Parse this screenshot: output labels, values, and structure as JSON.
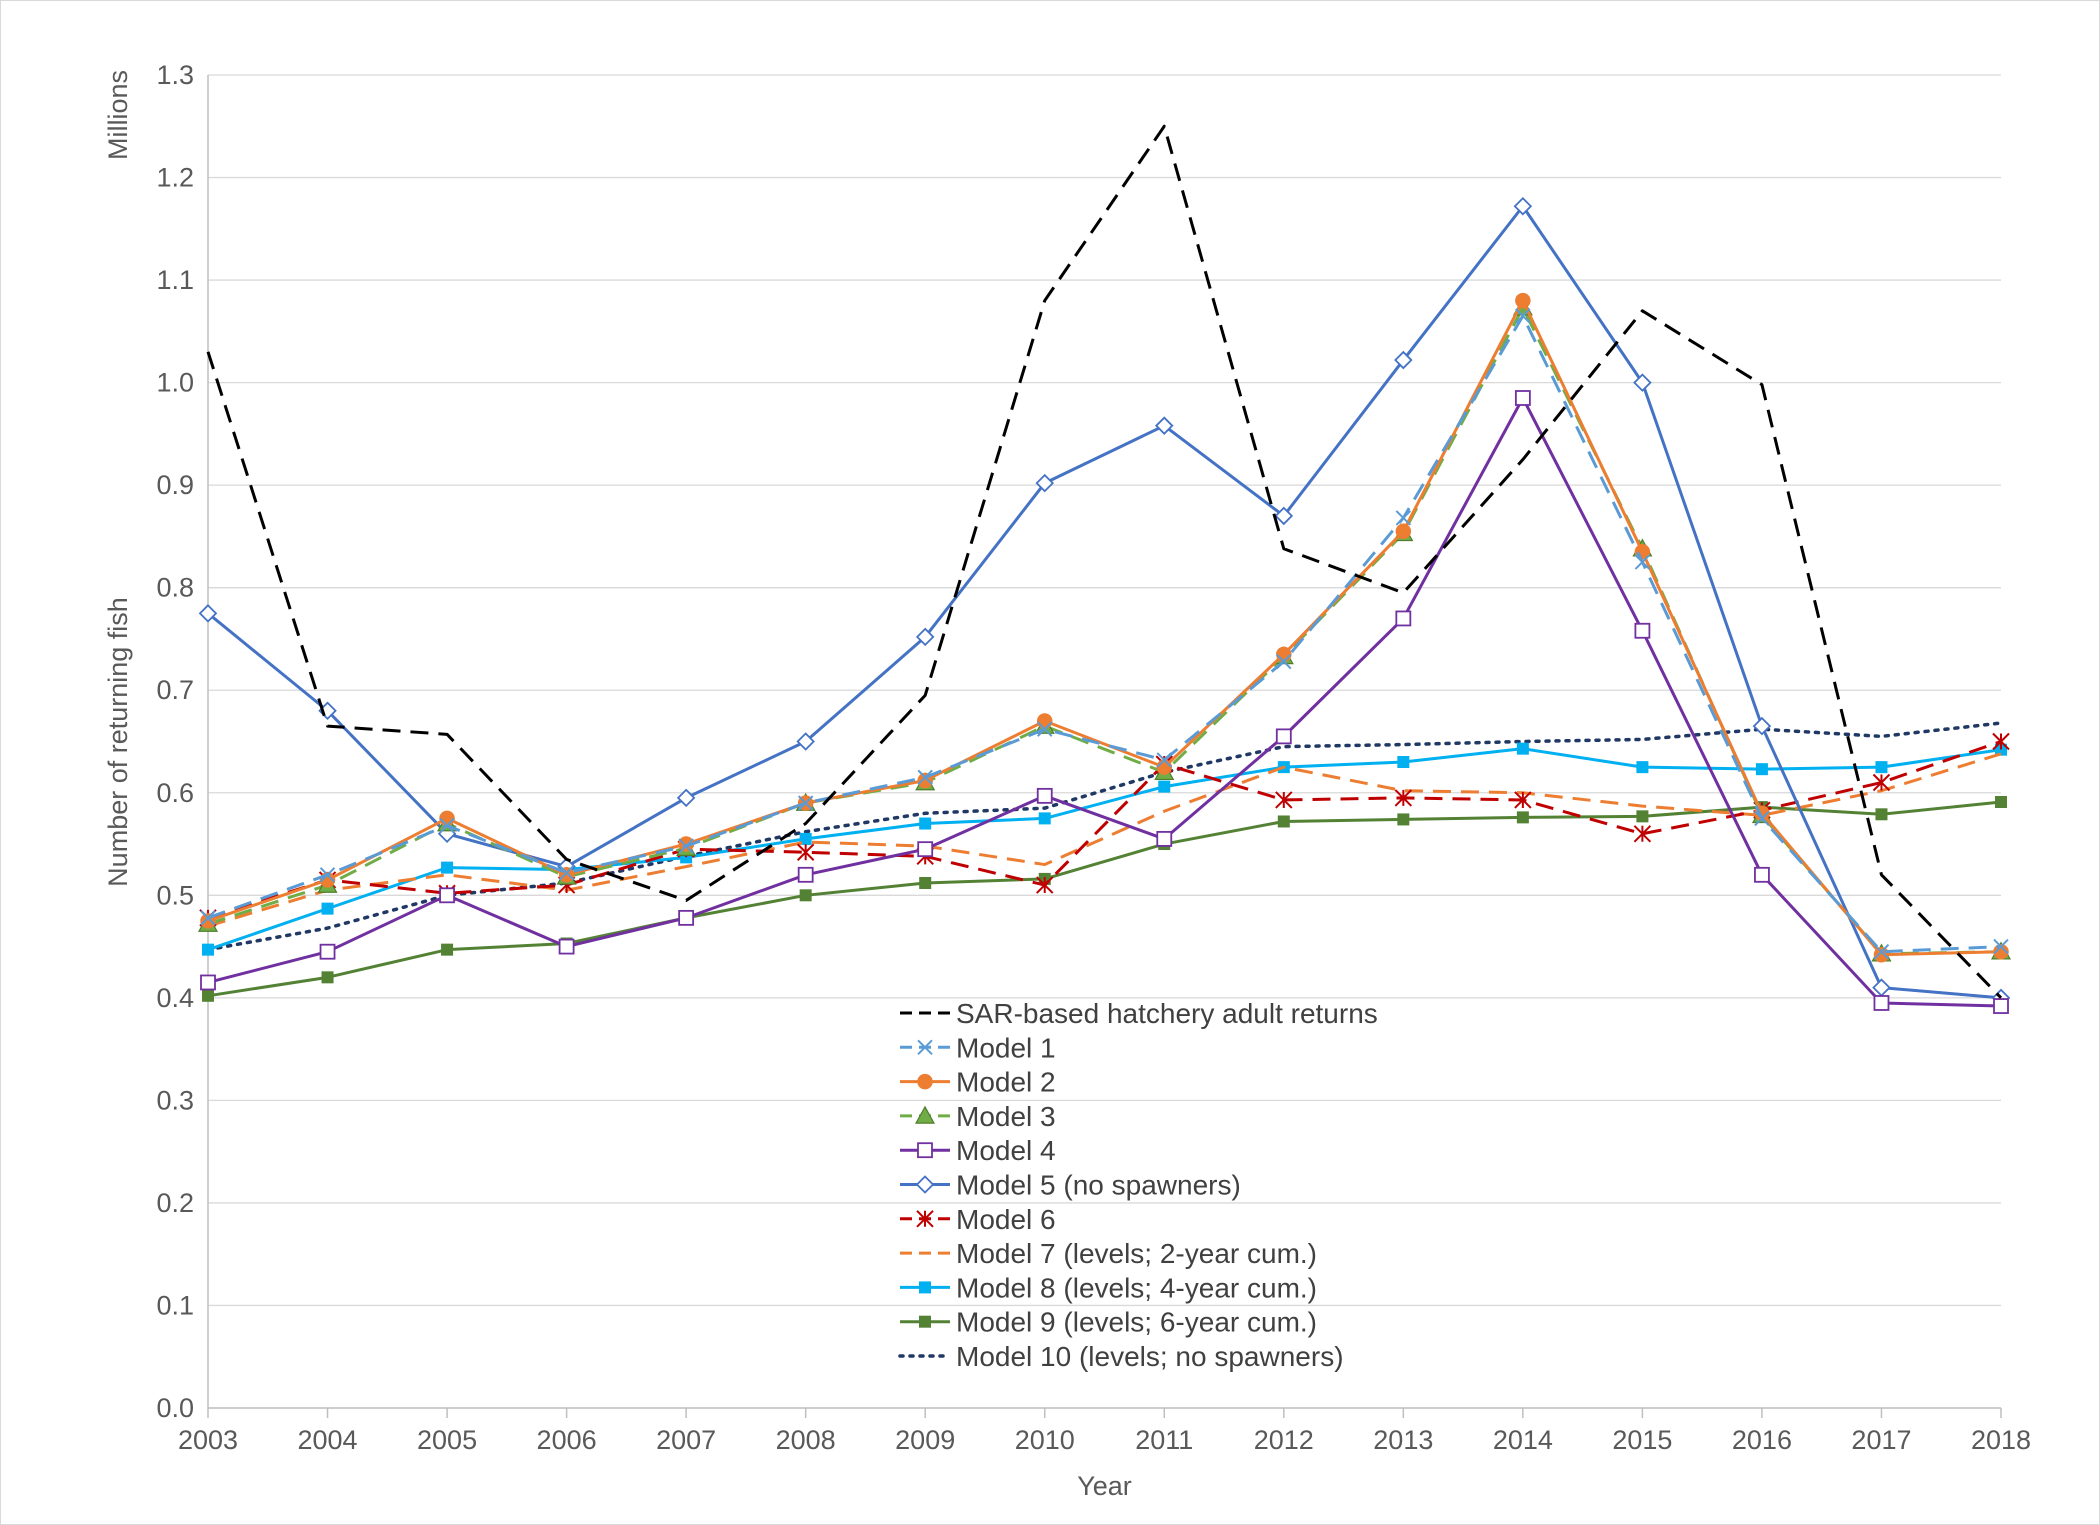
{
  "chart_data": {
    "type": "line",
    "title": "",
    "xlabel": "Year",
    "ylabel": "Number of returning fish",
    "yunit": "Millions",
    "ylim": [
      0,
      1.3
    ],
    "yticks": [
      "0.0",
      "0.1",
      "0.2",
      "0.3",
      "0.4",
      "0.5",
      "0.6",
      "0.7",
      "0.8",
      "0.9",
      "1.0",
      "1.1",
      "1.2",
      "1.3"
    ],
    "x": [
      "2003",
      "2004",
      "2005",
      "2006",
      "2007",
      "2008",
      "2009",
      "2010",
      "2011",
      "2012",
      "2013",
      "2014",
      "2015",
      "2016",
      "2017",
      "2018"
    ],
    "grid": "horizontal",
    "legend_position": "bottom-center",
    "series": [
      {
        "name": "SAR-based hatchery adult returns",
        "color": "#000000",
        "dash": "dashed",
        "marker": "none",
        "values": [
          1.03,
          0.665,
          0.657,
          0.535,
          0.495,
          0.57,
          0.695,
          1.08,
          1.25,
          0.838,
          0.795,
          0.925,
          1.07,
          0.998,
          0.52,
          0.4
        ]
      },
      {
        "name": "Model 1",
        "color": "#5B9BD5",
        "dash": "dashed",
        "marker": "x",
        "values": [
          0.478,
          0.52,
          0.568,
          0.522,
          0.548,
          0.59,
          0.615,
          0.662,
          0.632,
          0.728,
          0.868,
          1.065,
          0.825,
          0.575,
          0.445,
          0.45
        ]
      },
      {
        "name": "Model 2",
        "color": "#ED7D31",
        "dash": "solid",
        "marker": "circle",
        "values": [
          0.475,
          0.515,
          0.575,
          0.52,
          0.55,
          0.59,
          0.612,
          0.67,
          0.625,
          0.735,
          0.855,
          1.08,
          0.835,
          0.58,
          0.442,
          0.445
        ]
      },
      {
        "name": "Model 3",
        "color": "#70AD47",
        "dash": "dashed",
        "marker": "triangle",
        "values": [
          0.472,
          0.51,
          0.57,
          0.518,
          0.546,
          0.59,
          0.61,
          0.665,
          0.62,
          0.733,
          0.853,
          1.073,
          0.838,
          0.578,
          0.443,
          0.445
        ]
      },
      {
        "name": "Model 4",
        "color": "#7030A0",
        "dash": "solid",
        "marker": "square-open",
        "values": [
          0.415,
          0.445,
          0.5,
          0.45,
          0.478,
          0.52,
          0.545,
          0.597,
          0.555,
          0.655,
          0.77,
          0.985,
          0.758,
          0.52,
          0.395,
          0.392
        ]
      },
      {
        "name": "Model 5 (no spawners)",
        "color": "#4472C4",
        "dash": "solid",
        "marker": "diamond-open",
        "values": [
          0.775,
          0.68,
          0.56,
          0.528,
          0.595,
          0.65,
          0.752,
          0.902,
          0.958,
          0.87,
          1.022,
          1.172,
          1.0,
          0.665,
          0.41,
          0.4
        ]
      },
      {
        "name": "Model 6",
        "color": "#C00000",
        "dash": "dashed",
        "marker": "asterisk",
        "values": [
          0.478,
          0.515,
          0.502,
          0.51,
          0.545,
          0.542,
          0.538,
          0.51,
          0.628,
          0.593,
          0.595,
          0.593,
          0.56,
          0.583,
          0.61,
          0.65
        ]
      },
      {
        "name": "Model 7 (levels; 2-year cum.)",
        "color": "#ED7D31",
        "dash": "dashed",
        "marker": "none",
        "values": [
          0.47,
          0.505,
          0.52,
          0.505,
          0.528,
          0.552,
          0.548,
          0.53,
          0.582,
          0.625,
          0.602,
          0.6,
          0.587,
          0.578,
          0.602,
          0.638
        ]
      },
      {
        "name": "Model 8 (levels; 4-year cum.)",
        "color": "#00B0F0",
        "dash": "solid",
        "marker": "square",
        "values": [
          0.447,
          0.487,
          0.527,
          0.525,
          0.537,
          0.555,
          0.57,
          0.575,
          0.606,
          0.625,
          0.63,
          0.643,
          0.625,
          0.623,
          0.625,
          0.642
        ]
      },
      {
        "name": "Model 9 (levels; 6-year cum.)",
        "color": "#548235",
        "dash": "solid",
        "marker": "square",
        "values": [
          0.402,
          0.42,
          0.447,
          0.453,
          0.478,
          0.5,
          0.512,
          0.516,
          0.55,
          0.572,
          0.574,
          0.576,
          0.577,
          0.586,
          0.579,
          0.591
        ]
      },
      {
        "name": "Model 10 (levels; no spawners)",
        "color": "#203864",
        "dash": "dotted",
        "marker": "none",
        "values": [
          0.447,
          0.468,
          0.5,
          0.512,
          0.538,
          0.562,
          0.58,
          0.585,
          0.62,
          0.645,
          0.647,
          0.65,
          0.652,
          0.662,
          0.655,
          0.668
        ]
      }
    ]
  }
}
